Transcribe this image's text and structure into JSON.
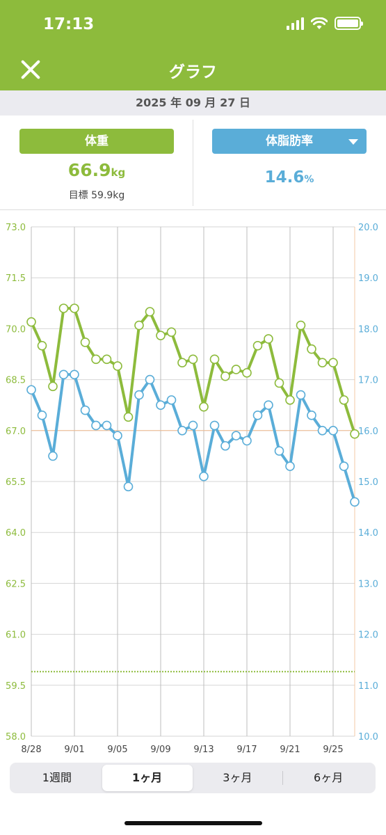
{
  "status_bar": {
    "time": "17:13",
    "icons": [
      "signal-icon",
      "wifi-icon",
      "battery-icon"
    ]
  },
  "nav": {
    "title": "グラフ",
    "close_icon": "close-icon"
  },
  "date": "2025 年 09 月 27 日",
  "weight": {
    "label": "体重",
    "value": "66.9",
    "unit": "kg",
    "goal": "目標 59.9kg"
  },
  "body_fat": {
    "label": "体脂肪率",
    "value": "14.6",
    "unit": "%",
    "dropdown_icon": "chevron-down-icon"
  },
  "colors": {
    "weight": "#8dbb3c",
    "body_fat": "#5aadd8",
    "header": "#8dbb3c",
    "goal_line": "#b6d36c"
  },
  "chart_data": {
    "type": "line",
    "x": [
      "8/28",
      "8/29",
      "8/30",
      "8/31",
      "9/01",
      "9/02",
      "9/03",
      "9/04",
      "9/05",
      "9/06",
      "9/07",
      "9/08",
      "9/09",
      "9/10",
      "9/11",
      "9/12",
      "9/13",
      "9/14",
      "9/15",
      "9/16",
      "9/17",
      "9/18",
      "9/19",
      "9/20",
      "9/21",
      "9/22",
      "9/23",
      "9/24",
      "9/25",
      "9/26",
      "9/27"
    ],
    "x_tick_labels": [
      "8/28",
      "9/01",
      "9/05",
      "9/09",
      "9/13",
      "9/17",
      "9/21",
      "9/25"
    ],
    "series": [
      {
        "axis": "left",
        "color": "#8dbb3c",
        "values": [
          70.2,
          69.5,
          68.3,
          70.6,
          70.6,
          69.6,
          69.1,
          69.1,
          68.9,
          67.4,
          70.1,
          70.5,
          69.8,
          69.9,
          69.0,
          69.1,
          67.7,
          69.1,
          68.6,
          68.8,
          68.7,
          69.5,
          69.7,
          68.4,
          67.9,
          70.1,
          69.4,
          69.0,
          69.0,
          67.9,
          66.9
        ]
      },
      {
        "axis": "right",
        "color": "#5aadd8",
        "values": [
          16.8,
          16.3,
          15.5,
          17.1,
          17.1,
          16.4,
          16.1,
          16.1,
          15.9,
          14.9,
          16.7,
          17.0,
          16.5,
          16.6,
          16.0,
          16.1,
          15.1,
          16.1,
          15.7,
          15.9,
          15.8,
          16.3,
          16.5,
          15.6,
          15.3,
          16.7,
          16.3,
          16.0,
          16.0,
          15.3,
          14.6
        ]
      }
    ],
    "left_axis": {
      "ylim": [
        58.0,
        73.0
      ],
      "ticks": [
        "73.0",
        "71.5",
        "70.0",
        "68.5",
        "67.0",
        "65.5",
        "64.0",
        "62.5",
        "61.0",
        "59.5",
        "58.0"
      ],
      "color": "#8dbb3c"
    },
    "right_axis": {
      "ylim": [
        10.0,
        20.0
      ],
      "ticks": [
        "20.0",
        "19.0",
        "18.0",
        "17.0",
        "16.0",
        "15.0",
        "14.0",
        "13.0",
        "12.0",
        "11.0",
        "10.0"
      ],
      "color": "#5aadd8"
    },
    "goal_line": 59.9,
    "reference_line": 67.0,
    "grid": true
  },
  "range_tabs": [
    {
      "label": "1週間",
      "active": false
    },
    {
      "label": "1ヶ月",
      "active": true
    },
    {
      "label": "3ヶ月",
      "active": false
    },
    {
      "label": "6ヶ月",
      "active": false
    }
  ]
}
